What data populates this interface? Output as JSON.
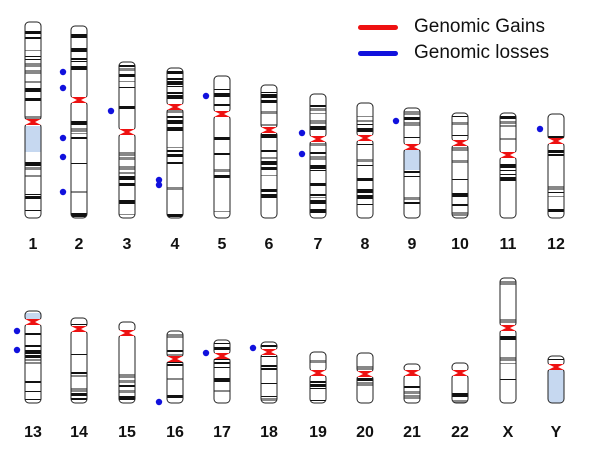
{
  "legend": {
    "gains": {
      "label": "Genomic Gains",
      "color": "#ee1111"
    },
    "losses": {
      "label": "Genomic losses",
      "color": "#1111dd"
    }
  },
  "colors": {
    "gain": "#ee1111",
    "loss": "#1111dd",
    "heterochromatin": "#c6d8f0",
    "band_dark": "#111111",
    "band_gray": "#888888",
    "outline": "#222222"
  },
  "chromosomes": [
    {
      "label": "1",
      "losses": 0
    },
    {
      "label": "2",
      "losses": 5
    },
    {
      "label": "3",
      "losses": 1
    },
    {
      "label": "4",
      "losses": 2
    },
    {
      "label": "5",
      "losses": 1
    },
    {
      "label": "6",
      "losses": 0
    },
    {
      "label": "7",
      "losses": 2
    },
    {
      "label": "8",
      "losses": 0
    },
    {
      "label": "9",
      "losses": 1
    },
    {
      "label": "10",
      "losses": 0
    },
    {
      "label": "11",
      "losses": 0
    },
    {
      "label": "12",
      "losses": 1
    },
    {
      "label": "13",
      "losses": 2
    },
    {
      "label": "14",
      "losses": 0
    },
    {
      "label": "15",
      "losses": 0
    },
    {
      "label": "16",
      "losses": 1
    },
    {
      "label": "17",
      "losses": 1
    },
    {
      "label": "18",
      "losses": 1
    },
    {
      "label": "19",
      "losses": 0
    },
    {
      "label": "20",
      "losses": 0
    },
    {
      "label": "21",
      "losses": 0
    },
    {
      "label": "22",
      "losses": 0
    },
    {
      "label": "X",
      "losses": 0
    },
    {
      "label": "Y",
      "losses": 0
    }
  ]
}
